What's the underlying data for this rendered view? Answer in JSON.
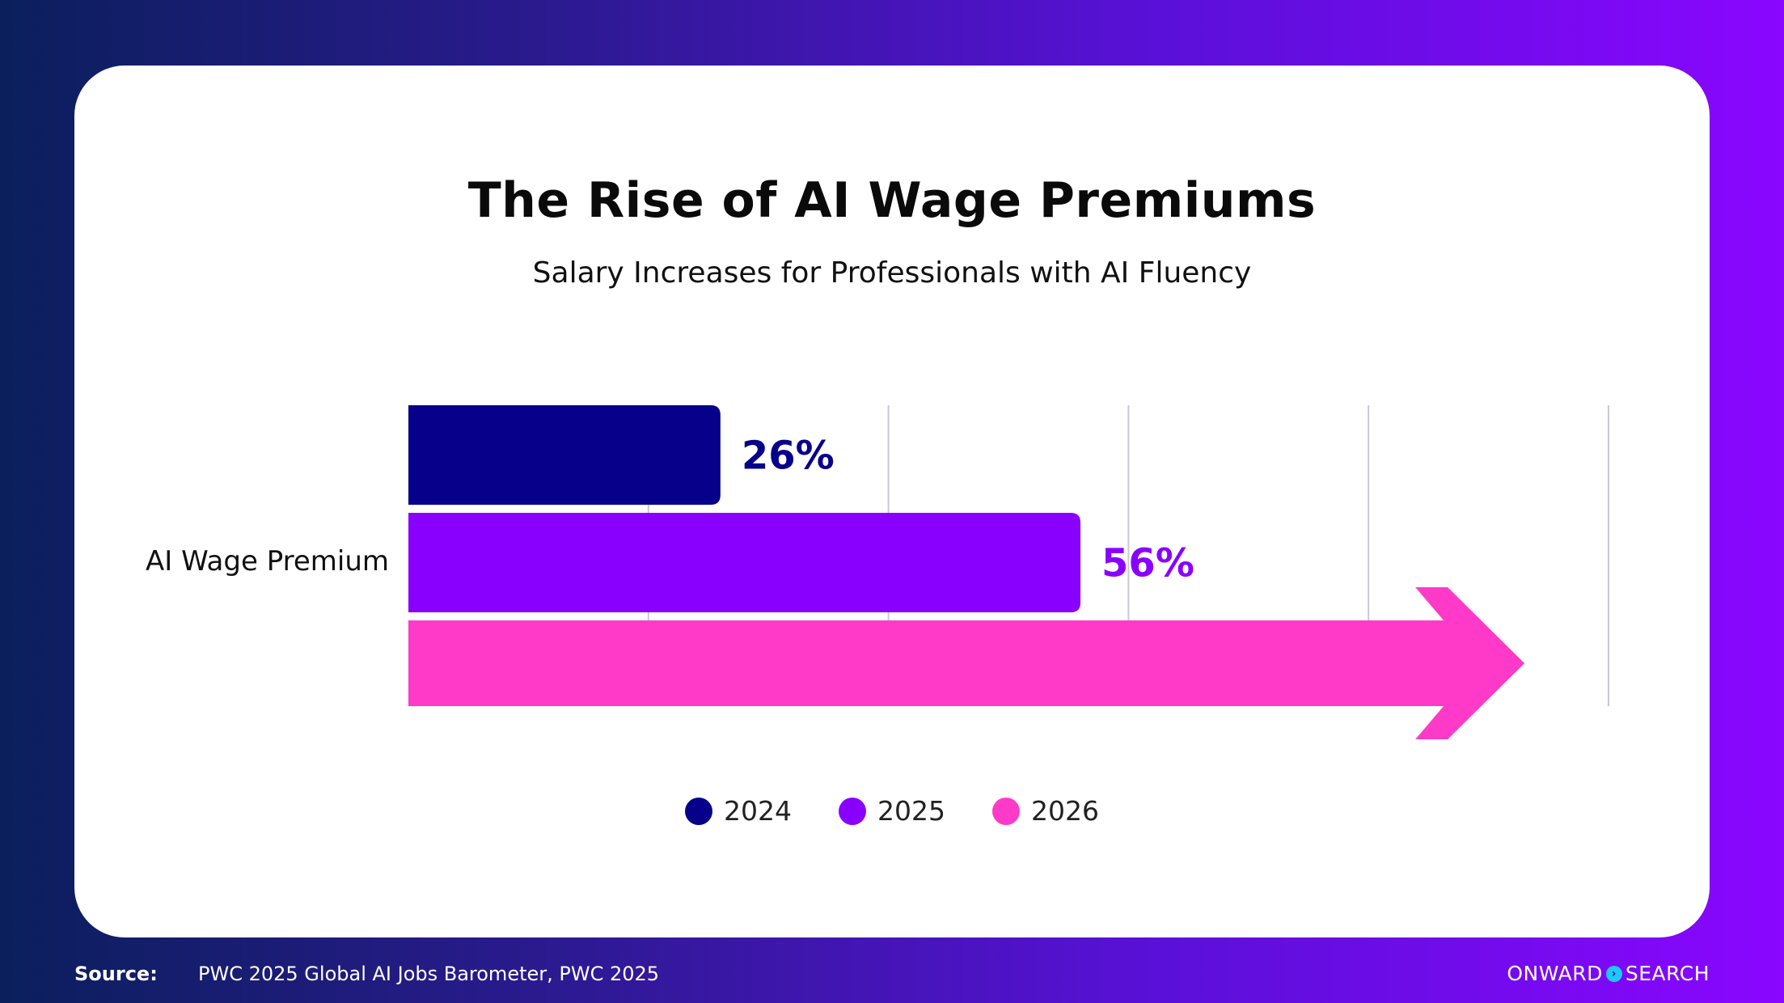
{
  "card": {
    "title": "The Rise of AI Wage Premiums",
    "subtitle": "Salary Increases for Professionals with AI Fluency"
  },
  "footer": {
    "source_label": "Source:",
    "source_text": "PWC 2025 Global AI Jobs Barometer, PWC 2025",
    "brand_left": "ONWARD",
    "brand_right": "SEARCH"
  },
  "colors": {
    "2024": "#07008a",
    "2025": "#8a00ff",
    "2026": "#ff3ac8"
  },
  "icons": {
    "brand_mark": "chevron-right-icon"
  },
  "chart_data": {
    "type": "bar",
    "orientation": "horizontal",
    "title": "The Rise of AI Wage Premiums",
    "subtitle": "Salary Increases for Professionals with AI Fluency",
    "categories": [
      "AI Wage Premium"
    ],
    "xlim": [
      0,
      100
    ],
    "grid": true,
    "legend_position": "bottom",
    "series": [
      {
        "name": "2024",
        "values": [
          26
        ],
        "label": "26%",
        "color": "#07008a"
      },
      {
        "name": "2025",
        "values": [
          56
        ],
        "label": "56%",
        "color": "#8a00ff"
      },
      {
        "name": "2026",
        "values": [
          93
        ],
        "label": "",
        "color": "#ff3ac8",
        "shape": "arrow"
      }
    ]
  }
}
